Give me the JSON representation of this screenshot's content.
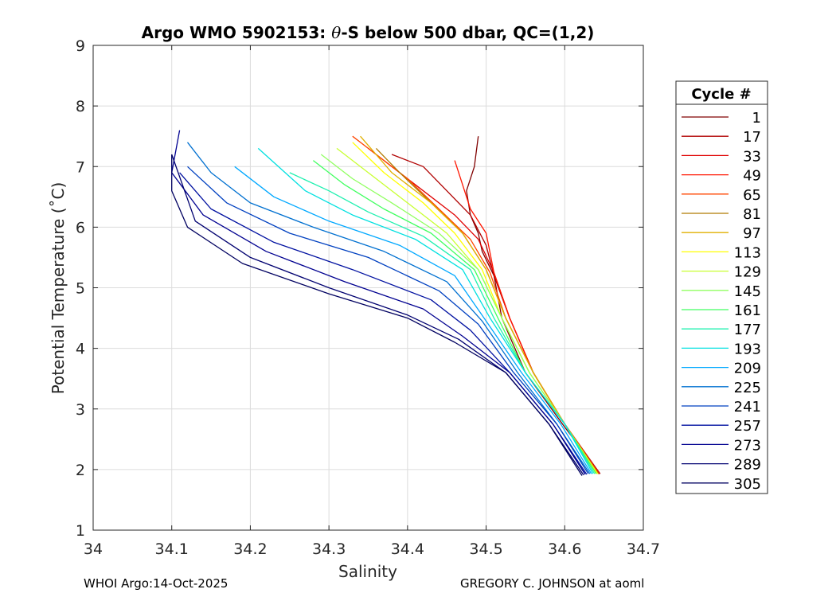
{
  "chart_data": {
    "type": "line",
    "title": "Argo WMO 5902153: θ-S below 500 dbar,  QC=(1,2)",
    "title_parts": {
      "prefix": "Argo WMO 5902153: ",
      "theta": "θ",
      "suffix": "-S below 500 dbar,  QC=(1,2)"
    },
    "xlabel": "Salinity",
    "ylabel": "Potential Temperature (˚C)",
    "xlim": [
      34,
      34.7
    ],
    "ylim": [
      1,
      9
    ],
    "xticks": [
      "34",
      "34.1",
      "34.2",
      "34.3",
      "34.4",
      "34.5",
      "34.6",
      "34.7"
    ],
    "yticks": [
      "1",
      "2",
      "3",
      "4",
      "5",
      "6",
      "7",
      "8",
      "9"
    ],
    "grid": true,
    "legend": {
      "title": "Cycle #",
      "placement": "outside-right",
      "entries": [
        {
          "label": "1",
          "color": "#800000"
        },
        {
          "label": "17",
          "color": "#b00000"
        },
        {
          "label": "33",
          "color": "#e00000"
        },
        {
          "label": "49",
          "color": "#ff1500"
        },
        {
          "label": "65",
          "color": "#ff4500"
        },
        {
          "label": "81",
          "color": "#b07a00"
        },
        {
          "label": "97",
          "color": "#e0b000"
        },
        {
          "label": "113",
          "color": "#ffff00"
        },
        {
          "label": "129",
          "color": "#c8ff30"
        },
        {
          "label": "145",
          "color": "#90ff60"
        },
        {
          "label": "161",
          "color": "#40ff60"
        },
        {
          "label": "177",
          "color": "#20f0b0"
        },
        {
          "label": "193",
          "color": "#00e0e0"
        },
        {
          "label": "209",
          "color": "#00a8ff"
        },
        {
          "label": "225",
          "color": "#0070d0"
        },
        {
          "label": "241",
          "color": "#0040c0"
        },
        {
          "label": "257",
          "color": "#0010a0"
        },
        {
          "label": "273",
          "color": "#000090"
        },
        {
          "label": "289",
          "color": "#000070"
        },
        {
          "label": "305",
          "color": "#000060"
        }
      ]
    },
    "series": [
      {
        "name": "1",
        "color": "#800000",
        "points": [
          [
            34.645,
            1.93
          ],
          [
            34.6,
            2.7
          ],
          [
            34.55,
            3.6
          ],
          [
            34.52,
            4.5
          ],
          [
            34.51,
            5.2
          ],
          [
            34.495,
            5.6
          ],
          [
            34.49,
            5.9
          ],
          [
            34.48,
            6.2
          ],
          [
            34.475,
            6.6
          ],
          [
            34.485,
            7.0
          ],
          [
            34.49,
            7.5
          ]
        ]
      },
      {
        "name": "17",
        "color": "#b00000",
        "points": [
          [
            34.645,
            1.93
          ],
          [
            34.6,
            2.75
          ],
          [
            34.56,
            3.6
          ],
          [
            34.53,
            4.5
          ],
          [
            34.51,
            5.2
          ],
          [
            34.5,
            5.7
          ],
          [
            34.48,
            6.2
          ],
          [
            34.45,
            6.6
          ],
          [
            34.42,
            7.0
          ],
          [
            34.38,
            7.2
          ]
        ]
      },
      {
        "name": "33",
        "color": "#e00000",
        "points": [
          [
            34.644,
            1.93
          ],
          [
            34.6,
            2.75
          ],
          [
            34.56,
            3.6
          ],
          [
            34.53,
            4.5
          ],
          [
            34.51,
            5.25
          ],
          [
            34.49,
            5.8
          ],
          [
            34.46,
            6.2
          ],
          [
            34.42,
            6.6
          ],
          [
            34.38,
            7.0
          ],
          [
            34.35,
            7.3
          ]
        ]
      },
      {
        "name": "49",
        "color": "#ff1500",
        "points": [
          [
            34.644,
            1.93
          ],
          [
            34.6,
            2.75
          ],
          [
            34.56,
            3.6
          ],
          [
            34.53,
            4.5
          ],
          [
            34.51,
            5.25
          ],
          [
            34.5,
            5.9
          ],
          [
            34.48,
            6.3
          ],
          [
            34.47,
            6.7
          ],
          [
            34.46,
            7.1
          ]
        ]
      },
      {
        "name": "65",
        "color": "#ff4500",
        "points": [
          [
            34.643,
            1.93
          ],
          [
            34.6,
            2.75
          ],
          [
            34.56,
            3.6
          ],
          [
            34.525,
            4.5
          ],
          [
            34.505,
            5.25
          ],
          [
            34.48,
            5.8
          ],
          [
            34.44,
            6.3
          ],
          [
            34.4,
            6.8
          ],
          [
            34.36,
            7.2
          ],
          [
            34.33,
            7.5
          ]
        ]
      },
      {
        "name": "81",
        "color": "#b07a00",
        "points": [
          [
            34.643,
            1.93
          ],
          [
            34.6,
            2.75
          ],
          [
            34.56,
            3.6
          ],
          [
            34.525,
            4.5
          ],
          [
            34.5,
            5.3
          ],
          [
            34.47,
            5.9
          ],
          [
            34.43,
            6.4
          ],
          [
            34.39,
            6.9
          ],
          [
            34.36,
            7.3
          ]
        ]
      },
      {
        "name": "97",
        "color": "#e0b000",
        "points": [
          [
            34.642,
            1.93
          ],
          [
            34.6,
            2.75
          ],
          [
            34.56,
            3.6
          ],
          [
            34.525,
            4.5
          ],
          [
            34.5,
            5.3
          ],
          [
            34.47,
            5.9
          ],
          [
            34.43,
            6.4
          ],
          [
            34.38,
            6.9
          ],
          [
            34.34,
            7.5
          ]
        ]
      },
      {
        "name": "113",
        "color": "#ffff00",
        "points": [
          [
            34.642,
            1.93
          ],
          [
            34.6,
            2.75
          ],
          [
            34.555,
            3.6
          ],
          [
            34.52,
            4.5
          ],
          [
            34.495,
            5.3
          ],
          [
            34.46,
            5.9
          ],
          [
            34.42,
            6.4
          ],
          [
            34.37,
            6.9
          ],
          [
            34.33,
            7.4
          ]
        ]
      },
      {
        "name": "129",
        "color": "#c8ff30",
        "points": [
          [
            34.641,
            1.93
          ],
          [
            34.6,
            2.75
          ],
          [
            34.555,
            3.6
          ],
          [
            34.52,
            4.5
          ],
          [
            34.49,
            5.3
          ],
          [
            34.45,
            5.9
          ],
          [
            34.4,
            6.4
          ],
          [
            34.35,
            6.9
          ],
          [
            34.31,
            7.3
          ]
        ]
      },
      {
        "name": "145",
        "color": "#90ff60",
        "points": [
          [
            34.64,
            1.93
          ],
          [
            34.6,
            2.75
          ],
          [
            34.555,
            3.6
          ],
          [
            34.52,
            4.5
          ],
          [
            34.49,
            5.3
          ],
          [
            34.44,
            5.9
          ],
          [
            34.38,
            6.4
          ],
          [
            34.33,
            6.8
          ],
          [
            34.29,
            7.2
          ]
        ]
      },
      {
        "name": "161",
        "color": "#40ff60",
        "points": [
          [
            34.64,
            1.93
          ],
          [
            34.6,
            2.75
          ],
          [
            34.55,
            3.6
          ],
          [
            34.515,
            4.5
          ],
          [
            34.485,
            5.3
          ],
          [
            34.43,
            5.9
          ],
          [
            34.37,
            6.3
          ],
          [
            34.32,
            6.7
          ],
          [
            34.28,
            7.1
          ]
        ]
      },
      {
        "name": "177",
        "color": "#20f0b0",
        "points": [
          [
            34.638,
            1.93
          ],
          [
            34.6,
            2.75
          ],
          [
            34.55,
            3.6
          ],
          [
            34.51,
            4.5
          ],
          [
            34.48,
            5.3
          ],
          [
            34.42,
            5.85
          ],
          [
            34.35,
            6.25
          ],
          [
            34.3,
            6.6
          ],
          [
            34.25,
            6.9
          ]
        ]
      },
      {
        "name": "193",
        "color": "#00e0e0",
        "points": [
          [
            34.636,
            1.93
          ],
          [
            34.6,
            2.75
          ],
          [
            34.55,
            3.6
          ],
          [
            34.505,
            4.5
          ],
          [
            34.47,
            5.3
          ],
          [
            34.41,
            5.8
          ],
          [
            34.33,
            6.2
          ],
          [
            34.27,
            6.6
          ],
          [
            34.21,
            7.3
          ]
        ]
      },
      {
        "name": "209",
        "color": "#00a8ff",
        "points": [
          [
            34.634,
            1.93
          ],
          [
            34.595,
            2.75
          ],
          [
            34.545,
            3.6
          ],
          [
            34.5,
            4.45
          ],
          [
            34.46,
            5.2
          ],
          [
            34.39,
            5.7
          ],
          [
            34.3,
            6.1
          ],
          [
            34.23,
            6.5
          ],
          [
            34.18,
            7.0
          ]
        ]
      },
      {
        "name": "225",
        "color": "#0070d0",
        "points": [
          [
            34.632,
            1.93
          ],
          [
            34.59,
            2.75
          ],
          [
            34.54,
            3.6
          ],
          [
            34.495,
            4.45
          ],
          [
            34.45,
            5.1
          ],
          [
            34.37,
            5.6
          ],
          [
            34.28,
            6.0
          ],
          [
            34.2,
            6.4
          ],
          [
            34.15,
            6.9
          ],
          [
            34.12,
            7.4
          ]
        ]
      },
      {
        "name": "241",
        "color": "#0040c0",
        "points": [
          [
            34.63,
            1.93
          ],
          [
            34.59,
            2.75
          ],
          [
            34.535,
            3.6
          ],
          [
            34.49,
            4.4
          ],
          [
            34.44,
            4.95
          ],
          [
            34.35,
            5.5
          ],
          [
            34.25,
            5.9
          ],
          [
            34.17,
            6.4
          ],
          [
            34.12,
            7.0
          ]
        ]
      },
      {
        "name": "257",
        "color": "#0010a0",
        "points": [
          [
            34.628,
            1.92
          ],
          [
            34.585,
            2.75
          ],
          [
            34.53,
            3.6
          ],
          [
            34.48,
            4.3
          ],
          [
            34.43,
            4.8
          ],
          [
            34.33,
            5.3
          ],
          [
            34.23,
            5.75
          ],
          [
            34.15,
            6.3
          ],
          [
            34.11,
            6.9
          ]
        ]
      },
      {
        "name": "273",
        "color": "#000090",
        "points": [
          [
            34.626,
            1.92
          ],
          [
            34.585,
            2.75
          ],
          [
            34.53,
            3.6
          ],
          [
            34.47,
            4.2
          ],
          [
            34.42,
            4.65
          ],
          [
            34.32,
            5.1
          ],
          [
            34.22,
            5.6
          ],
          [
            34.14,
            6.2
          ],
          [
            34.1,
            6.9
          ],
          [
            34.11,
            7.6
          ]
        ]
      },
      {
        "name": "289",
        "color": "#000070",
        "points": [
          [
            34.624,
            1.91
          ],
          [
            34.58,
            2.75
          ],
          [
            34.525,
            3.6
          ],
          [
            34.465,
            4.15
          ],
          [
            34.4,
            4.55
          ],
          [
            34.3,
            5.0
          ],
          [
            34.2,
            5.5
          ],
          [
            34.13,
            6.1
          ],
          [
            34.1,
            7.2
          ]
        ]
      },
      {
        "name": "305",
        "color": "#000060",
        "points": [
          [
            34.622,
            1.9
          ],
          [
            34.58,
            2.75
          ],
          [
            34.525,
            3.6
          ],
          [
            34.46,
            4.1
          ],
          [
            34.4,
            4.5
          ],
          [
            34.3,
            4.9
          ],
          [
            34.19,
            5.4
          ],
          [
            34.12,
            6.0
          ],
          [
            34.1,
            6.6
          ],
          [
            34.1,
            7.2
          ]
        ]
      }
    ]
  },
  "footer": {
    "left": "WHOI Argo:14-Oct-2025",
    "right": "GREGORY C. JOHNSON at aoml"
  }
}
